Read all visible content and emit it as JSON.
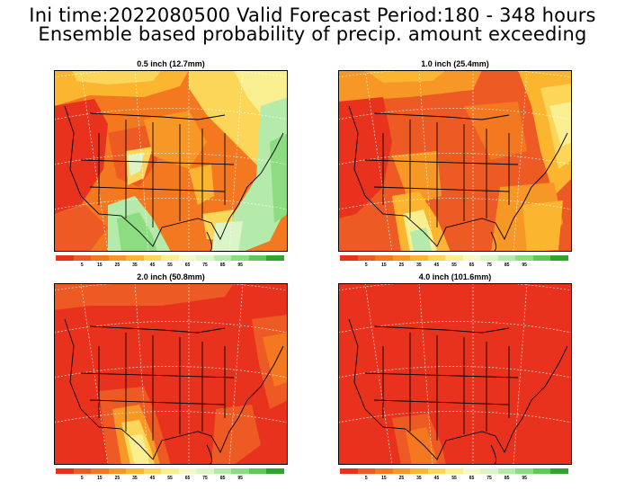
{
  "header": {
    "line1": "Ini time:2022080500  Valid Forecast Period:180 - 348 hours",
    "line2": "Ensemble based probability of precip. amount exceeding"
  },
  "panels": [
    {
      "title": "0.5 inch (12.7mm)",
      "map": "probability-map-0.5in"
    },
    {
      "title": "1.0 inch (25.4mm)",
      "map": "probability-map-1.0in"
    },
    {
      "title": "2.0 inch (50.8mm)",
      "map": "probability-map-2.0in"
    },
    {
      "title": "4.0 inch (101.6mm)",
      "map": "probability-map-4.0in"
    }
  ],
  "colorbar": {
    "colors": [
      "#e8321e",
      "#ee5a23",
      "#f3781f",
      "#f79726",
      "#fbb52f",
      "#fcd659",
      "#f9ef90",
      "#f5f8c8",
      "#dcf5c8",
      "#b4ebaa",
      "#8cdc82",
      "#5fc85a",
      "#2fa42f"
    ],
    "labels": [
      "5",
      "15",
      "25",
      "35",
      "45",
      "55",
      "65",
      "75",
      "85",
      "95"
    ]
  }
}
